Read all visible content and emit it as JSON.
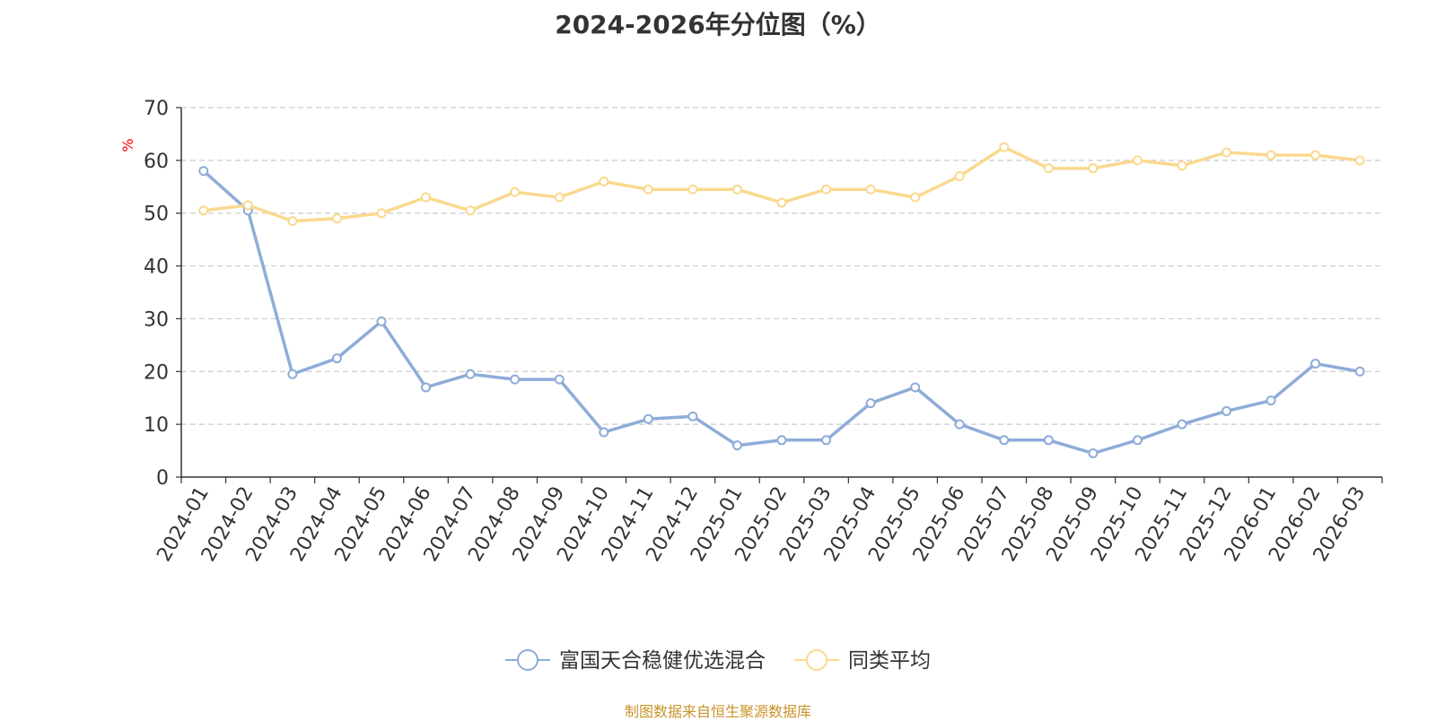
{
  "chart_data": {
    "type": "line",
    "title": "2024-2026年分位图（%）",
    "ylabel": "%",
    "xlabel": "",
    "ylim": [
      0,
      70
    ],
    "y_ticks": [
      0,
      10,
      20,
      30,
      40,
      50,
      60,
      70
    ],
    "grid": true,
    "legend_position": "bottom",
    "categories": [
      "2024-01",
      "2024-02",
      "2024-03",
      "2024-04",
      "2024-05",
      "2024-06",
      "2024-07",
      "2024-08",
      "2024-09",
      "2024-10",
      "2024-11",
      "2024-12",
      "2025-01",
      "2025-02",
      "2025-03",
      "2025-04",
      "2025-05",
      "2025-06",
      "2025-07",
      "2025-08",
      "2025-09",
      "2025-10",
      "2025-11",
      "2025-12",
      "2026-01",
      "2026-02",
      "2026-03"
    ],
    "series": [
      {
        "name": "富国天合稳健优选混合",
        "color": "#8eacd8",
        "values": [
          58,
          50.5,
          19.5,
          22.5,
          29.5,
          17,
          19.5,
          18.5,
          18.5,
          8.5,
          11,
          11.5,
          6,
          7,
          7,
          14,
          17,
          10,
          7,
          7,
          4.5,
          7,
          10,
          12.5,
          14.5,
          21.5,
          20
        ]
      },
      {
        "name": "同类平均",
        "color": "#fad98e",
        "values": [
          50.5,
          51.5,
          48.5,
          49,
          50,
          53,
          50.5,
          54,
          53,
          56,
          54.5,
          54.5,
          54.5,
          52,
          54.5,
          54.5,
          53,
          57,
          62.5,
          58.5,
          58.5,
          60,
          59,
          61.5,
          61,
          61,
          60
        ]
      }
    ]
  },
  "source_note": "制图数据来自恒生聚源数据库"
}
